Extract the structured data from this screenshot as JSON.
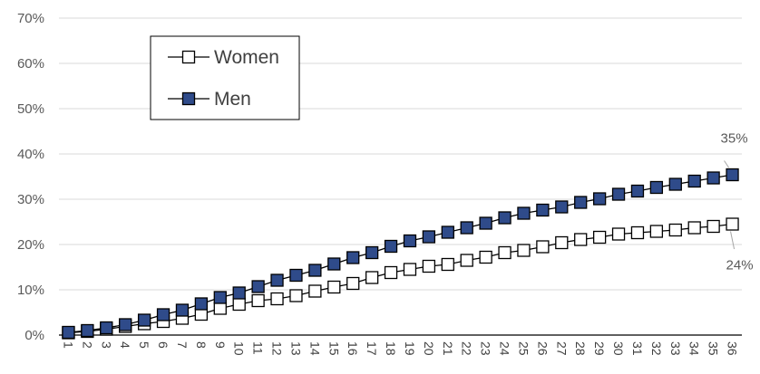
{
  "chart_data": {
    "type": "line",
    "title": "",
    "xlabel": "",
    "ylabel": "",
    "ylim": [
      0,
      0.7
    ],
    "yticks": [
      "0%",
      "10%",
      "20%",
      "30%",
      "40%",
      "50%",
      "60%",
      "70%"
    ],
    "grid": "horizontal",
    "legend_position": "upper-left",
    "x": [
      1,
      2,
      3,
      4,
      5,
      6,
      7,
      8,
      9,
      10,
      11,
      12,
      13,
      14,
      15,
      16,
      17,
      18,
      19,
      20,
      21,
      22,
      23,
      24,
      25,
      26,
      27,
      28,
      29,
      30,
      31,
      32,
      33,
      34,
      35,
      36
    ],
    "series": [
      {
        "name": "Women",
        "marker": "square-open",
        "color": "#000000",
        "fill": "#ffffff",
        "values": [
          0.005,
          0.008,
          0.013,
          0.019,
          0.025,
          0.03,
          0.037,
          0.046,
          0.059,
          0.068,
          0.076,
          0.08,
          0.087,
          0.097,
          0.106,
          0.114,
          0.127,
          0.138,
          0.145,
          0.152,
          0.156,
          0.165,
          0.172,
          0.182,
          0.187,
          0.195,
          0.204,
          0.211,
          0.216,
          0.223,
          0.226,
          0.229,
          0.232,
          0.237,
          0.24,
          0.245
        ],
        "end_label": "24%"
      },
      {
        "name": "Men",
        "marker": "square-filled",
        "color": "#000000",
        "fill": "#2f4b8a",
        "values": [
          0.006,
          0.01,
          0.016,
          0.023,
          0.033,
          0.045,
          0.055,
          0.069,
          0.083,
          0.093,
          0.107,
          0.121,
          0.132,
          0.143,
          0.157,
          0.171,
          0.182,
          0.196,
          0.208,
          0.217,
          0.227,
          0.237,
          0.247,
          0.259,
          0.269,
          0.276,
          0.283,
          0.293,
          0.301,
          0.311,
          0.318,
          0.326,
          0.333,
          0.34,
          0.347,
          0.354
        ],
        "end_label": "35%"
      }
    ]
  }
}
